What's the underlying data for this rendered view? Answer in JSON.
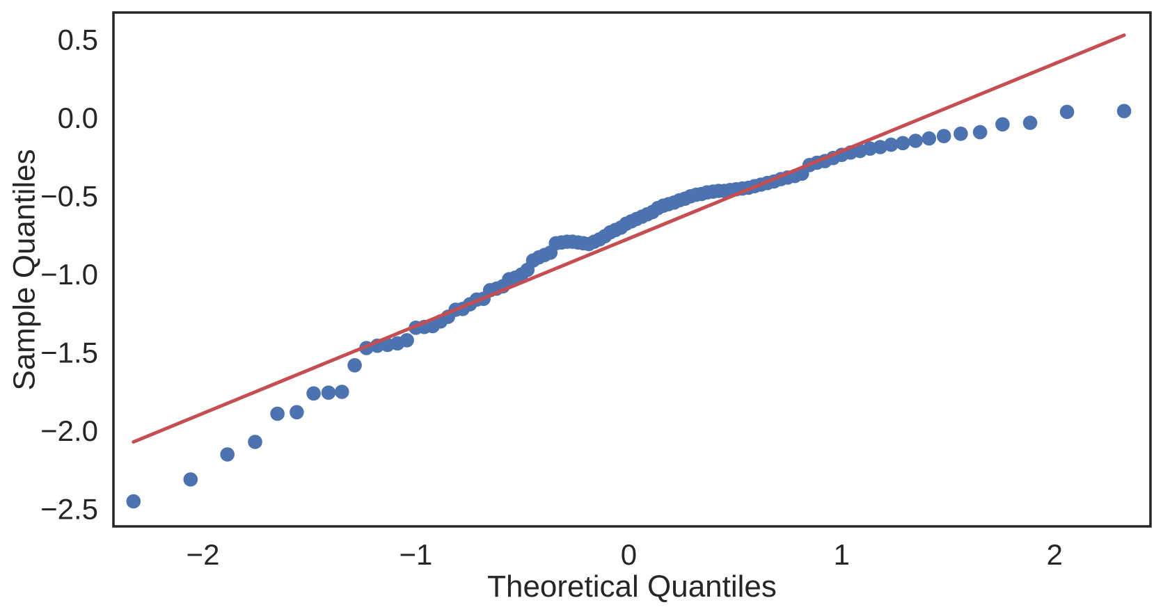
{
  "chart_data": {
    "type": "scatter",
    "title": "",
    "xlabel": "Theoretical Quantiles",
    "ylabel": "Sample Quantiles",
    "xlim": [
      -2.42,
      2.45
    ],
    "ylim": [
      -2.61,
      0.675
    ],
    "grid": false,
    "legend_position": "none",
    "x_ticks": [
      -2,
      -1,
      0,
      1,
      2
    ],
    "x_tick_labels": [
      "−2",
      "−1",
      "0",
      "1",
      "2"
    ],
    "y_ticks": [
      0.5,
      0.0,
      -0.5,
      -1.0,
      -1.5,
      -2.0,
      -2.5
    ],
    "y_tick_labels": [
      "0.5",
      "0.0",
      "−0.5",
      "−1.0",
      "−1.5",
      "−2.0",
      "−2.5"
    ],
    "styles": {
      "point_color": "#4C72B0",
      "point_radius": 10.3,
      "line_color": "#C44E52",
      "line_width": 5,
      "spine_color": "#262626",
      "spine_width": 3.5,
      "text_color": "#262626",
      "tick_font_px": 42,
      "background": "#ffffff"
    },
    "series": [
      {
        "name": "sample-vs-theoretical-quantiles",
        "type": "scatter",
        "points": [
          [
            -2.326,
            -2.45
          ],
          [
            -2.058,
            -2.31
          ],
          [
            -1.885,
            -2.15
          ],
          [
            -1.755,
            -2.07
          ],
          [
            -1.65,
            -1.89
          ],
          [
            -1.559,
            -1.88
          ],
          [
            -1.48,
            -1.76
          ],
          [
            -1.41,
            -1.755
          ],
          [
            -1.347,
            -1.75
          ],
          [
            -1.287,
            -1.58
          ],
          [
            -1.232,
            -1.47
          ],
          [
            -1.181,
            -1.455
          ],
          [
            -1.133,
            -1.45
          ],
          [
            -1.086,
            -1.44
          ],
          [
            -1.042,
            -1.42
          ],
          [
            -1.0,
            -1.34
          ],
          [
            -0.96,
            -1.335
          ],
          [
            -0.921,
            -1.33
          ],
          [
            -0.884,
            -1.3
          ],
          [
            -0.849,
            -1.27
          ],
          [
            -0.813,
            -1.225
          ],
          [
            -0.78,
            -1.22
          ],
          [
            -0.746,
            -1.19
          ],
          [
            -0.714,
            -1.16
          ],
          [
            -0.682,
            -1.155
          ],
          [
            -0.651,
            -1.1
          ],
          [
            -0.621,
            -1.09
          ],
          [
            -0.591,
            -1.075
          ],
          [
            -0.562,
            -1.03
          ],
          [
            -0.533,
            -1.02
          ],
          [
            -0.504,
            -1.0
          ],
          [
            -0.476,
            -0.97
          ],
          [
            -0.449,
            -0.91
          ],
          [
            -0.422,
            -0.89
          ],
          [
            -0.395,
            -0.875
          ],
          [
            -0.368,
            -0.86
          ],
          [
            -0.342,
            -0.8
          ],
          [
            -0.316,
            -0.795
          ],
          [
            -0.29,
            -0.79
          ],
          [
            -0.264,
            -0.79
          ],
          [
            -0.238,
            -0.795
          ],
          [
            -0.213,
            -0.8
          ],
          [
            -0.187,
            -0.805
          ],
          [
            -0.162,
            -0.79
          ],
          [
            -0.137,
            -0.775
          ],
          [
            -0.112,
            -0.755
          ],
          [
            -0.087,
            -0.73
          ],
          [
            -0.062,
            -0.715
          ],
          [
            -0.037,
            -0.7
          ],
          [
            -0.012,
            -0.675
          ],
          [
            0.012,
            -0.66
          ],
          [
            0.037,
            -0.645
          ],
          [
            0.062,
            -0.63
          ],
          [
            0.087,
            -0.615
          ],
          [
            0.112,
            -0.6
          ],
          [
            0.137,
            -0.575
          ],
          [
            0.162,
            -0.56
          ],
          [
            0.187,
            -0.55
          ],
          [
            0.213,
            -0.54
          ],
          [
            0.238,
            -0.525
          ],
          [
            0.264,
            -0.515
          ],
          [
            0.29,
            -0.5
          ],
          [
            0.316,
            -0.49
          ],
          [
            0.342,
            -0.485
          ],
          [
            0.368,
            -0.475
          ],
          [
            0.395,
            -0.47
          ],
          [
            0.422,
            -0.465
          ],
          [
            0.449,
            -0.465
          ],
          [
            0.476,
            -0.46
          ],
          [
            0.504,
            -0.455
          ],
          [
            0.533,
            -0.45
          ],
          [
            0.562,
            -0.445
          ],
          [
            0.591,
            -0.435
          ],
          [
            0.621,
            -0.425
          ],
          [
            0.651,
            -0.415
          ],
          [
            0.682,
            -0.405
          ],
          [
            0.714,
            -0.39
          ],
          [
            0.746,
            -0.38
          ],
          [
            0.78,
            -0.37
          ],
          [
            0.813,
            -0.355
          ],
          [
            0.849,
            -0.3
          ],
          [
            0.884,
            -0.285
          ],
          [
            0.921,
            -0.275
          ],
          [
            0.96,
            -0.255
          ],
          [
            1.0,
            -0.235
          ],
          [
            1.042,
            -0.22
          ],
          [
            1.086,
            -0.21
          ],
          [
            1.133,
            -0.195
          ],
          [
            1.181,
            -0.185
          ],
          [
            1.232,
            -0.17
          ],
          [
            1.287,
            -0.16
          ],
          [
            1.347,
            -0.145
          ],
          [
            1.41,
            -0.13
          ],
          [
            1.48,
            -0.115
          ],
          [
            1.559,
            -0.1
          ],
          [
            1.65,
            -0.09
          ],
          [
            1.755,
            -0.04
          ],
          [
            1.885,
            -0.03
          ],
          [
            2.058,
            0.04
          ],
          [
            2.326,
            0.045
          ]
        ]
      },
      {
        "name": "reference-line",
        "type": "line",
        "points": [
          [
            -2.326,
            -2.07
          ],
          [
            2.326,
            0.53
          ]
        ]
      }
    ]
  }
}
